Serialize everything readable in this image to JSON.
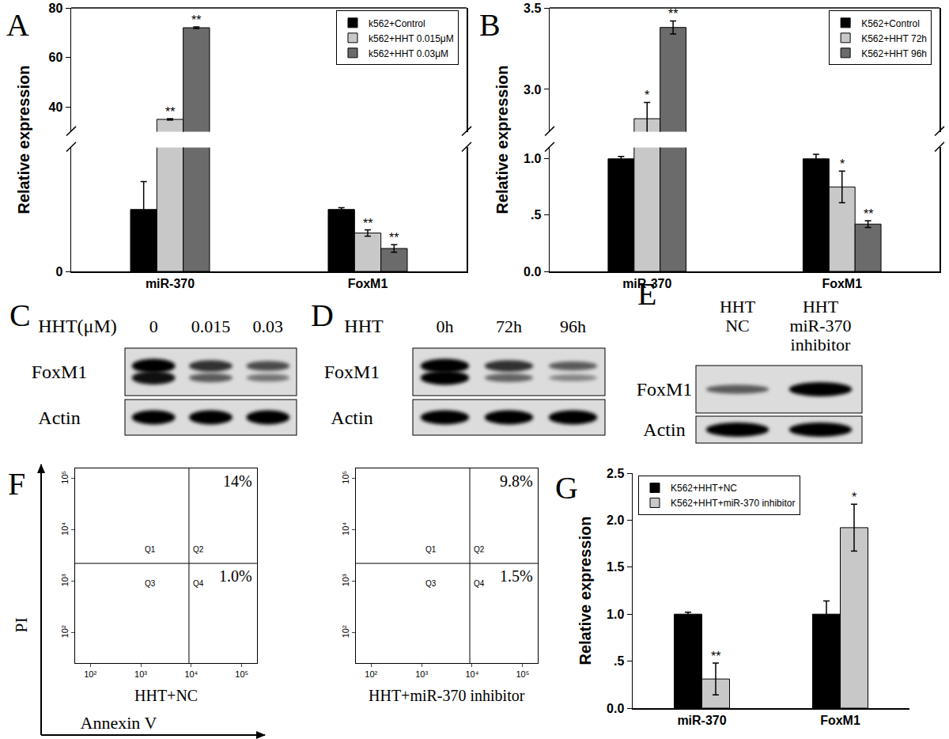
{
  "chart_data": [
    {
      "type": "bar",
      "title": "A",
      "y_label": "Relative expression",
      "categories": [
        "miR-370",
        "FoxM1"
      ],
      "ylim": [
        [
          0,
          2
        ],
        [
          30,
          80
        ]
      ],
      "yticks": [
        [
          0
        ],
        [
          40,
          60,
          80
        ]
      ],
      "legend": "upper right",
      "series": [
        {
          "name": "k562+Control",
          "color": "#000000",
          "values": [
            1.0,
            1.0
          ],
          "errors": [
            0.45,
            0.03
          ],
          "significance": [
            null,
            null
          ]
        },
        {
          "name": "k562+HHT 0.015μM",
          "color": "#c8c8c8",
          "values": [
            35,
            0.62
          ],
          "errors": [
            0.3,
            0.05
          ],
          "significance": [
            "**",
            "**"
          ]
        },
        {
          "name": "k562+HHT 0.03μM",
          "color": "#6b6b6b",
          "values": [
            72,
            0.37
          ],
          "errors": [
            0.3,
            0.06
          ],
          "significance": [
            "**",
            "**"
          ]
        }
      ]
    },
    {
      "type": "bar",
      "title": "B",
      "y_label": "Relative expression",
      "categories": [
        "miR-370",
        "FoxM1"
      ],
      "ylim": [
        [
          0,
          1.1
        ],
        [
          2.74,
          3.5
        ]
      ],
      "yticks": [
        [
          {
            "value": 0,
            "label": "0.0"
          },
          {
            "value": 0.5,
            "label": ".5"
          },
          {
            "value": 1,
            "label": "1.0"
          }
        ],
        [
          {
            "value": 3,
            "label": "3.0"
          },
          {
            "value": 3.5,
            "label": "3.5"
          }
        ]
      ],
      "legend": "upper right",
      "series": [
        {
          "name": "K562+Control",
          "color": "#000000",
          "values": [
            1.0,
            1.0
          ],
          "errors": [
            0.02,
            0.04
          ],
          "significance": [
            null,
            null
          ]
        },
        {
          "name": "K562+HHT 72h",
          "color": "#c8c8c8",
          "values": [
            2.82,
            0.75
          ],
          "errors": [
            0.1,
            0.14
          ],
          "significance": [
            "*",
            "*"
          ]
        },
        {
          "name": "K562+HHT 96h",
          "color": "#6b6b6b",
          "values": [
            3.38,
            0.42
          ],
          "errors": [
            0.04,
            0.03
          ],
          "significance": [
            "**",
            "**"
          ]
        }
      ]
    },
    {
      "type": "flow_cytometry",
      "title": "F",
      "x_label": "Annexin V",
      "y_label": "PI",
      "log": true,
      "xlim": [
        50,
        200000
      ],
      "ylim": [
        26,
        158000
      ],
      "xticks": [
        {
          "value": 100,
          "label": "10²"
        },
        {
          "value": 1000,
          "label": "10³"
        },
        {
          "value": 10000,
          "label": "10⁴"
        },
        {
          "value": 100000,
          "label": "10⁵"
        }
      ],
      "yticks": [
        {
          "value": 100,
          "label": "10²"
        },
        {
          "value": 1000,
          "label": "10³"
        },
        {
          "value": 10000,
          "label": "10⁴"
        },
        {
          "value": 100000,
          "label": "10⁵"
        }
      ],
      "panels": [
        {
          "subtitle": "HHT+NC",
          "gate": {
            "x": 9000,
            "y": 2250
          },
          "quadrants": [
            "Q1",
            "Q2",
            "Q3",
            "Q4"
          ],
          "percentages": {
            "quadrants": [
              "Q2",
              "Q4"
            ],
            "values": [
              14,
              1.0
            ],
            "value_labels": [
              "14%",
              "1.0%"
            ]
          }
        },
        {
          "subtitle": "HHT+miR-370 inhibitor",
          "gate": {
            "x": 9000,
            "y": 2250
          },
          "quadrants": [
            "Q1",
            "Q2",
            "Q3",
            "Q4"
          ],
          "percentages": {
            "quadrants": [
              "Q2",
              "Q4"
            ],
            "values": [
              9.8,
              1.5
            ],
            "value_labels": [
              "9.8%",
              "1.5%"
            ]
          }
        }
      ]
    },
    {
      "type": "bar",
      "title": "G",
      "y_label": "Relative expression",
      "categories": [
        "miR-370",
        "FoxM1"
      ],
      "ylim": [
        0,
        2.5
      ],
      "yticks": [
        {
          "value": 0,
          "label": "0.0"
        },
        {
          "value": 0.5,
          "label": ".5"
        },
        {
          "value": 1,
          "label": "1.0"
        },
        {
          "value": 1.5,
          "label": "1.5"
        },
        {
          "value": 2,
          "label": "2.0"
        },
        {
          "value": 2.5,
          "label": "2.5"
        }
      ],
      "legend": "upper left",
      "series": [
        {
          "name": "K562+HHT+NC",
          "color": "#000000",
          "values": [
            1.0,
            1.0
          ],
          "errors": [
            0.02,
            0.14
          ],
          "significance": [
            null,
            null
          ]
        },
        {
          "name": "K562+HHT+miR-370 inhibitor",
          "color": "#c8c8c8",
          "values": [
            0.31,
            1.92
          ],
          "errors": [
            0.17,
            0.25
          ],
          "significance": [
            "**",
            "*"
          ]
        }
      ]
    }
  ],
  "blots": [
    {
      "title": "C",
      "header": "HHT(μM)",
      "lanes": [
        [
          "0"
        ],
        [
          "0.015"
        ],
        [
          "0.03"
        ]
      ],
      "rows": [
        {
          "label": "FoxM1",
          "bands": [
            [
              1.0,
              0.9
            ],
            [
              0.7,
              0.45
            ],
            [
              0.55,
              0.3
            ]
          ]
        },
        {
          "label": "Actin",
          "bands": [
            [
              1.0
            ],
            [
              1.0
            ],
            [
              1.0
            ]
          ]
        }
      ]
    },
    {
      "title": "D",
      "header": "HHT",
      "lanes": [
        [
          "0h"
        ],
        [
          "72h"
        ],
        [
          "96h"
        ]
      ],
      "rows": [
        {
          "label": "FoxM1",
          "bands": [
            [
              1.0,
              1.0
            ],
            [
              0.7,
              0.4
            ],
            [
              0.45,
              0.2
            ]
          ]
        },
        {
          "label": "Actin",
          "bands": [
            [
              1.0
            ],
            [
              1.0
            ],
            [
              1.0
            ]
          ]
        }
      ]
    },
    {
      "title": "E",
      "lanes": [
        [
          "HHT",
          "NC"
        ],
        [
          "HHT",
          "miR-370",
          "inhibitor"
        ]
      ],
      "rows": [
        {
          "label": "FoxM1",
          "bands": [
            [
              0.45
            ],
            [
              1.0
            ]
          ]
        },
        {
          "label": "Actin",
          "bands": [
            [
              1.0
            ],
            [
              1.0
            ]
          ]
        }
      ]
    }
  ]
}
